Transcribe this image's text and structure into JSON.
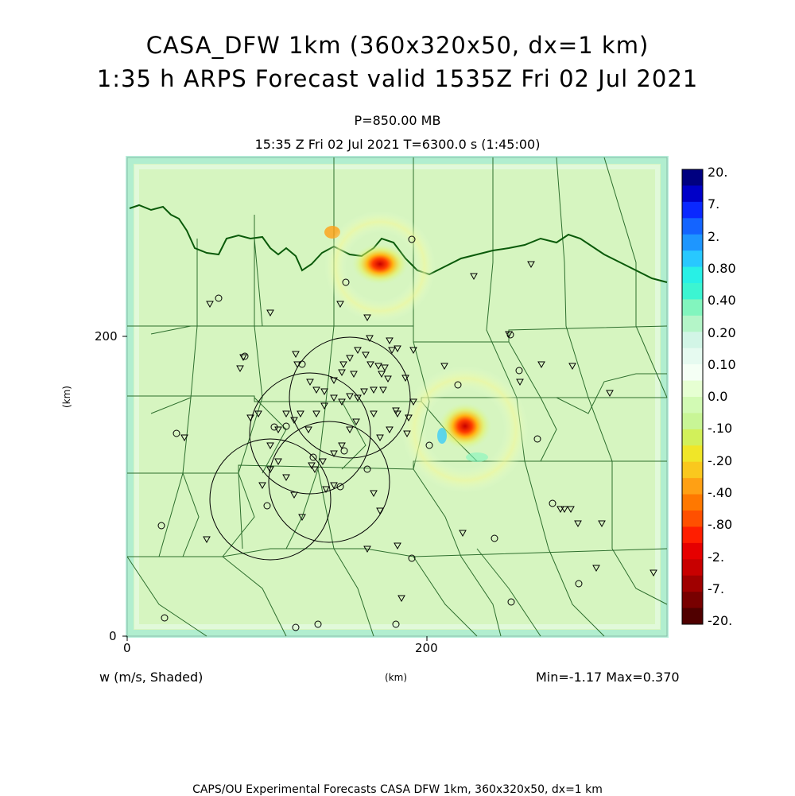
{
  "title_line1": "CASA_DFW 1km (360x320x50, dx=1 km)",
  "title_line2": "1:35 h ARPS Forecast valid 1535Z Fri 02 Jul 2021",
  "level": "P=850.00 MB",
  "time_line": "15:35 Z Fri 02 Jul 2021    T=6300.0 s (1:45:00)",
  "axes": {
    "x_ticks": [
      "0",
      "200"
    ],
    "y_ticks": [
      "0",
      "200"
    ],
    "x_unit": "(km)",
    "y_unit": "(km)"
  },
  "field_label": "w (m/s, Shaded)",
  "minmax": "Min=-1.17 Max=0.370",
  "footer": "CAPS/OU Experimental Forecasts  CASA DFW 1km, 360x320x50, dx=1 km",
  "colorbar": {
    "labels": [
      "20.",
      "7.",
      "2.",
      "0.80",
      "0.40",
      "0.20",
      "0.10",
      "0.0",
      "-.10",
      "-.20",
      "-.40",
      "-.80",
      "-2.",
      "-7.",
      "-20."
    ],
    "colors": [
      "#000080",
      "#0000c8",
      "#0a28ff",
      "#1464ff",
      "#1e96ff",
      "#28c8ff",
      "#28f0e6",
      "#3cf5d2",
      "#82f5be",
      "#b4f5c8",
      "#d2f5e6",
      "#e6faf0",
      "#f5fff5",
      "#e6ffd2",
      "#d2fab4",
      "#c8f596",
      "#d2f05a",
      "#f0e628",
      "#fac81e",
      "#ffa014",
      "#ff7800",
      "#ff5000",
      "#ff1e00",
      "#e60000",
      "#c80000",
      "#a00000",
      "#780000",
      "#500000"
    ]
  }
}
